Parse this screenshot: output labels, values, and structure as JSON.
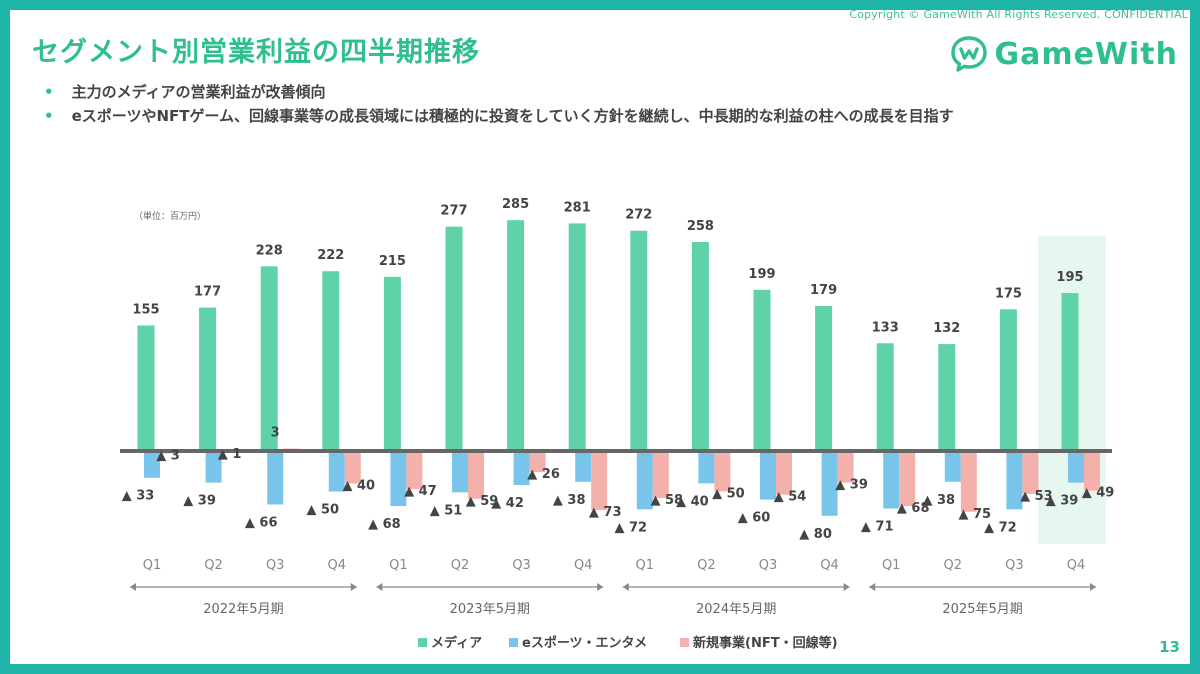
{
  "header": {
    "copyright": "Copyright © GameWith All Rights Reserved. CONFIDENTIAL",
    "title": "セグメント別営業利益の四半期推移",
    "logo_text": "GameWith",
    "page_number": "13"
  },
  "bullets": [
    "主力のメディアの営業利益が改善傾向",
    "eスポーツやNFTゲーム、回線事業等の成長領域には積極的に投資をしていく方針を継続し、中長期的な利益の柱への成長を目指す"
  ],
  "colors": {
    "frame": "#1fb4a8",
    "accent": "#2fbf8f",
    "media": "#5fd3a7",
    "esports": "#79c4ea",
    "new_biz": "#f4b1ac",
    "highlight": "#e6f7ef"
  },
  "chart_data": {
    "type": "bar",
    "unit_label": "（単位：百万円）",
    "categories": [
      "Q1",
      "Q2",
      "Q3",
      "Q4",
      "Q1",
      "Q2",
      "Q3",
      "Q4",
      "Q1",
      "Q2",
      "Q3",
      "Q4",
      "Q1",
      "Q2",
      "Q3",
      "Q4"
    ],
    "groups": [
      {
        "label": "2022年5月期",
        "quarters": 4
      },
      {
        "label": "2023年5月期",
        "quarters": 4
      },
      {
        "label": "2024年5月期",
        "quarters": 4
      },
      {
        "label": "2025年5月期",
        "quarters": 4
      }
    ],
    "series": [
      {
        "name": "メディア",
        "color": "#5fd3a7",
        "values": [
          155,
          177,
          228,
          222,
          215,
          277,
          285,
          281,
          272,
          258,
          199,
          179,
          133,
          132,
          175,
          195
        ],
        "labels": [
          "155",
          "177",
          "228",
          "222",
          "215",
          "277",
          "285",
          "281",
          "272",
          "258",
          "199",
          "179",
          "133",
          "132",
          "175",
          "195"
        ]
      },
      {
        "name": "eスポーツ・エンタメ",
        "color": "#79c4ea",
        "values": [
          -33,
          -39,
          -66,
          -50,
          -68,
          -51,
          -42,
          -38,
          -72,
          -40,
          -60,
          -80,
          -71,
          -38,
          -72,
          -39
        ],
        "labels": [
          "▲ 33",
          "▲ 39",
          "▲ 66",
          "▲ 50",
          "▲ 68",
          "▲ 51",
          "▲ 42",
          "▲ 38",
          "▲ 72",
          "▲ 40",
          "▲ 60",
          "▲ 80",
          "▲ 71",
          "▲ 38",
          "▲ 72",
          "▲ 39"
        ]
      },
      {
        "name": "新規事業(NFT・回線等)",
        "color": "#f4b1ac",
        "values": [
          -3,
          -1,
          3,
          -40,
          -47,
          -59,
          -26,
          -73,
          -58,
          -50,
          -54,
          -39,
          -68,
          -75,
          -53,
          -49
        ],
        "labels": [
          "▲ 3",
          "▲ 1",
          "3",
          "▲ 40",
          "▲ 47",
          "▲ 59",
          "▲ 26",
          "▲ 73",
          "▲ 58",
          "▲ 50",
          "▲ 54",
          "▲ 39",
          "▲ 68",
          "▲ 75",
          "▲ 53",
          "▲ 49"
        ]
      }
    ],
    "highlight_index": 15,
    "legend_position": "bottom"
  }
}
